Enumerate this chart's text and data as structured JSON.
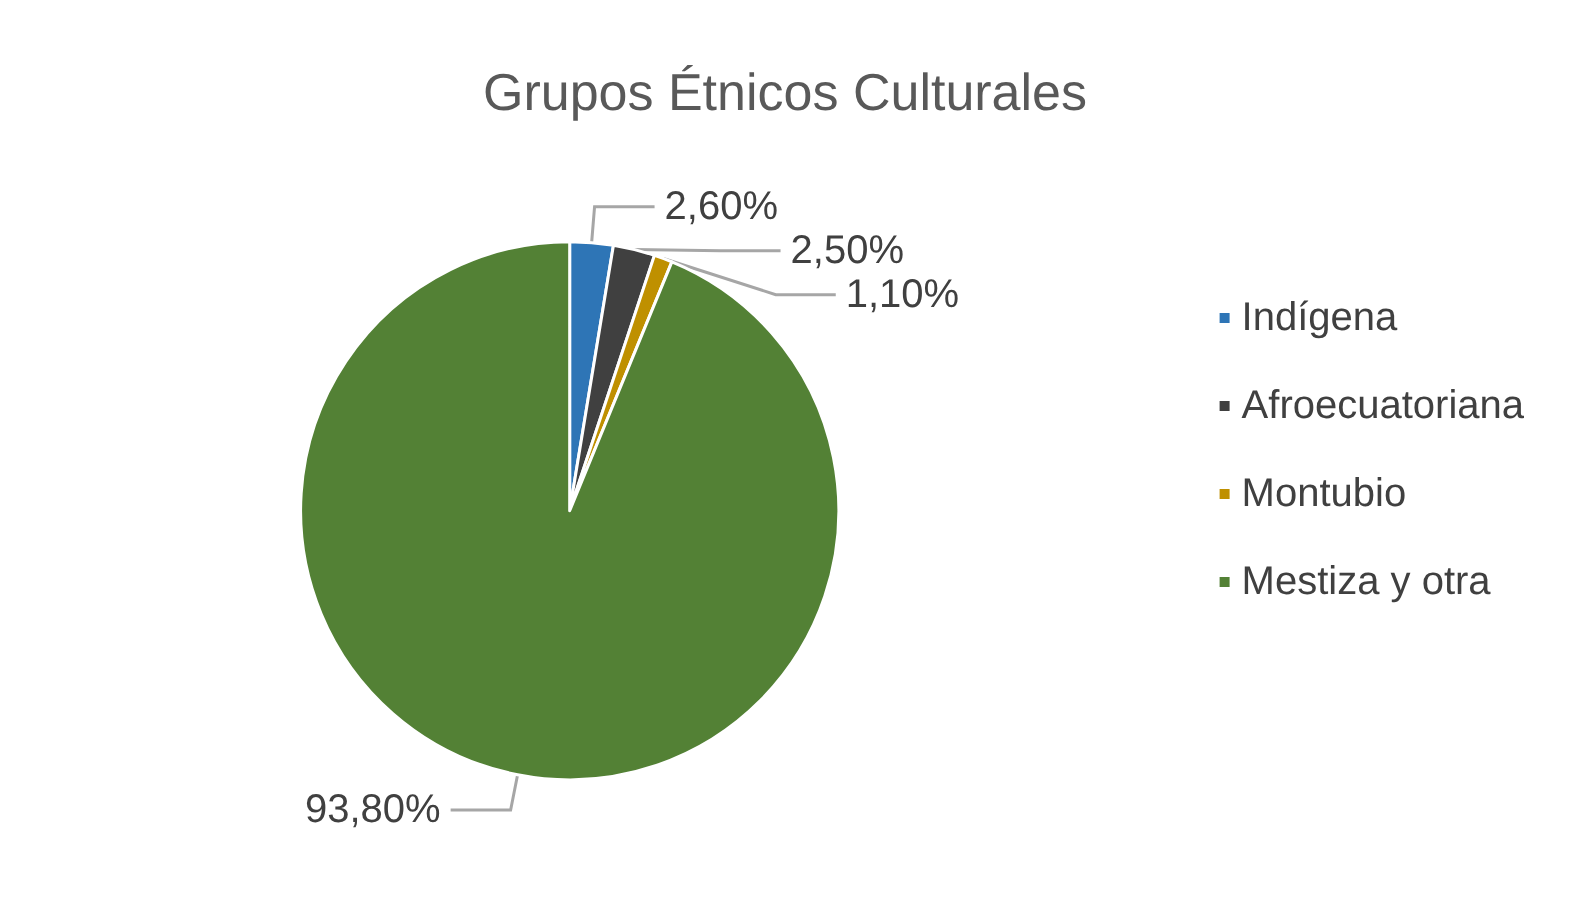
{
  "chart_data": {
    "type": "pie",
    "title": "Grupos Étnicos Culturales",
    "categories": [
      "Indígena",
      "Afroecuatoriana",
      "Montubio",
      "Mestiza y otra"
    ],
    "values": [
      2.6,
      2.5,
      1.1,
      93.8
    ],
    "colors": [
      "#2e75b6",
      "#404040",
      "#bf9000",
      "#538135"
    ],
    "value_labels": [
      "2,60%",
      "2,50%",
      "1,10%",
      "93,80%"
    ],
    "legend": "right"
  }
}
